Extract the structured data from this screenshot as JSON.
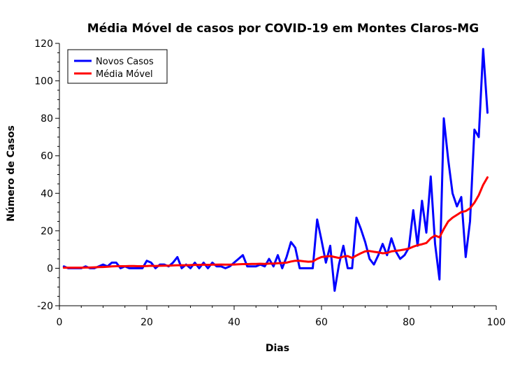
{
  "chart_data": {
    "type": "line",
    "title": "Média Móvel de casos por COVID-19 em Montes Claros-MG",
    "xlabel": "Dias",
    "ylabel": "Número de Casos",
    "xlim": [
      0,
      100
    ],
    "ylim": [
      -20,
      120
    ],
    "xticks": [
      0,
      20,
      40,
      60,
      80,
      100
    ],
    "yticks": [
      -20,
      0,
      20,
      40,
      60,
      80,
      100,
      120
    ],
    "grid": false,
    "legend_position": "top-left",
    "series": [
      {
        "name": "Novos Casos",
        "color": "#0000ff",
        "x": [
          1,
          2,
          3,
          4,
          5,
          6,
          7,
          8,
          9,
          10,
          11,
          12,
          13,
          14,
          15,
          16,
          17,
          18,
          19,
          20,
          21,
          22,
          23,
          24,
          25,
          26,
          27,
          28,
          29,
          30,
          31,
          32,
          33,
          34,
          35,
          36,
          37,
          38,
          39,
          40,
          41,
          42,
          43,
          44,
          45,
          46,
          47,
          48,
          49,
          50,
          51,
          52,
          53,
          54,
          55,
          56,
          57,
          58,
          59,
          60,
          61,
          62,
          63,
          64,
          65,
          66,
          67,
          68,
          69,
          70,
          71,
          72,
          73,
          74,
          75,
          76,
          77,
          78,
          79,
          80,
          81,
          82,
          83,
          84,
          85,
          86,
          87,
          88,
          89,
          90,
          91,
          92,
          93,
          94,
          95,
          96,
          97,
          98
        ],
        "y": [
          1,
          0,
          0,
          0,
          0,
          1,
          0,
          0,
          1,
          2,
          1,
          3,
          3,
          0,
          1,
          0,
          0,
          0,
          0,
          4,
          3,
          0,
          2,
          2,
          1,
          3,
          6,
          0,
          2,
          0,
          3,
          0,
          3,
          0,
          3,
          1,
          1,
          0,
          1,
          3,
          5,
          7,
          1,
          1,
          1,
          2,
          1,
          5,
          1,
          7,
          0,
          6,
          14,
          11,
          0,
          0,
          0,
          0,
          26,
          15,
          3,
          12,
          -12,
          2,
          12,
          0,
          0,
          27,
          21,
          14,
          5,
          2,
          7,
          13,
          7,
          16,
          9,
          5,
          7,
          11,
          31,
          12,
          36,
          19,
          49,
          13,
          -6,
          80,
          58,
          40,
          33,
          38,
          6,
          25,
          74,
          70,
          117,
          83
        ]
      },
      {
        "name": "Média Móvel",
        "color": "#ff0000",
        "x": [
          1,
          2,
          3,
          4,
          5,
          6,
          7,
          8,
          9,
          10,
          11,
          12,
          13,
          14,
          15,
          16,
          17,
          18,
          19,
          20,
          21,
          22,
          23,
          24,
          25,
          26,
          27,
          28,
          29,
          30,
          31,
          32,
          33,
          34,
          35,
          36,
          37,
          38,
          39,
          40,
          41,
          42,
          43,
          44,
          45,
          46,
          47,
          48,
          49,
          50,
          51,
          52,
          53,
          54,
          55,
          56,
          57,
          58,
          59,
          60,
          61,
          62,
          63,
          64,
          65,
          66,
          67,
          68,
          69,
          70,
          71,
          72,
          73,
          74,
          75,
          76,
          77,
          78,
          79,
          80,
          81,
          82,
          83,
          84,
          85,
          86,
          87,
          88,
          89,
          90,
          91,
          92,
          93,
          94,
          95,
          96,
          97,
          98
        ],
        "y": [
          0.3,
          0.3,
          0.3,
          0.3,
          0.3,
          0.4,
          0.4,
          0.5,
          0.6,
          0.7,
          0.8,
          1.0,
          1.1,
          1.1,
          1.1,
          1.2,
          1.2,
          1.1,
          1.1,
          1.2,
          1.3,
          1.2,
          1.3,
          1.4,
          1.4,
          1.5,
          1.6,
          1.6,
          1.6,
          1.7,
          1.8,
          1.8,
          1.9,
          1.8,
          1.9,
          1.9,
          2.0,
          1.9,
          1.9,
          2.0,
          2.1,
          2.2,
          2.2,
          2.3,
          2.3,
          2.4,
          2.3,
          2.5,
          2.5,
          2.7,
          2.8,
          3.0,
          3.6,
          4.0,
          4.0,
          3.7,
          3.5,
          3.6,
          5.0,
          6.0,
          6.3,
          6.5,
          6.0,
          5.5,
          6.2,
          6.5,
          5.5,
          6.8,
          8.0,
          9.0,
          9.2,
          8.8,
          8.5,
          8.0,
          8.2,
          9.0,
          9.3,
          9.6,
          10.0,
          10.5,
          11.5,
          12.3,
          12.8,
          13.5,
          16.0,
          17.5,
          16.5,
          21.0,
          25.0,
          27.0,
          28.5,
          30.0,
          30.5,
          32.0,
          35.0,
          39.0,
          44.5,
          48.5
        ]
      }
    ]
  }
}
